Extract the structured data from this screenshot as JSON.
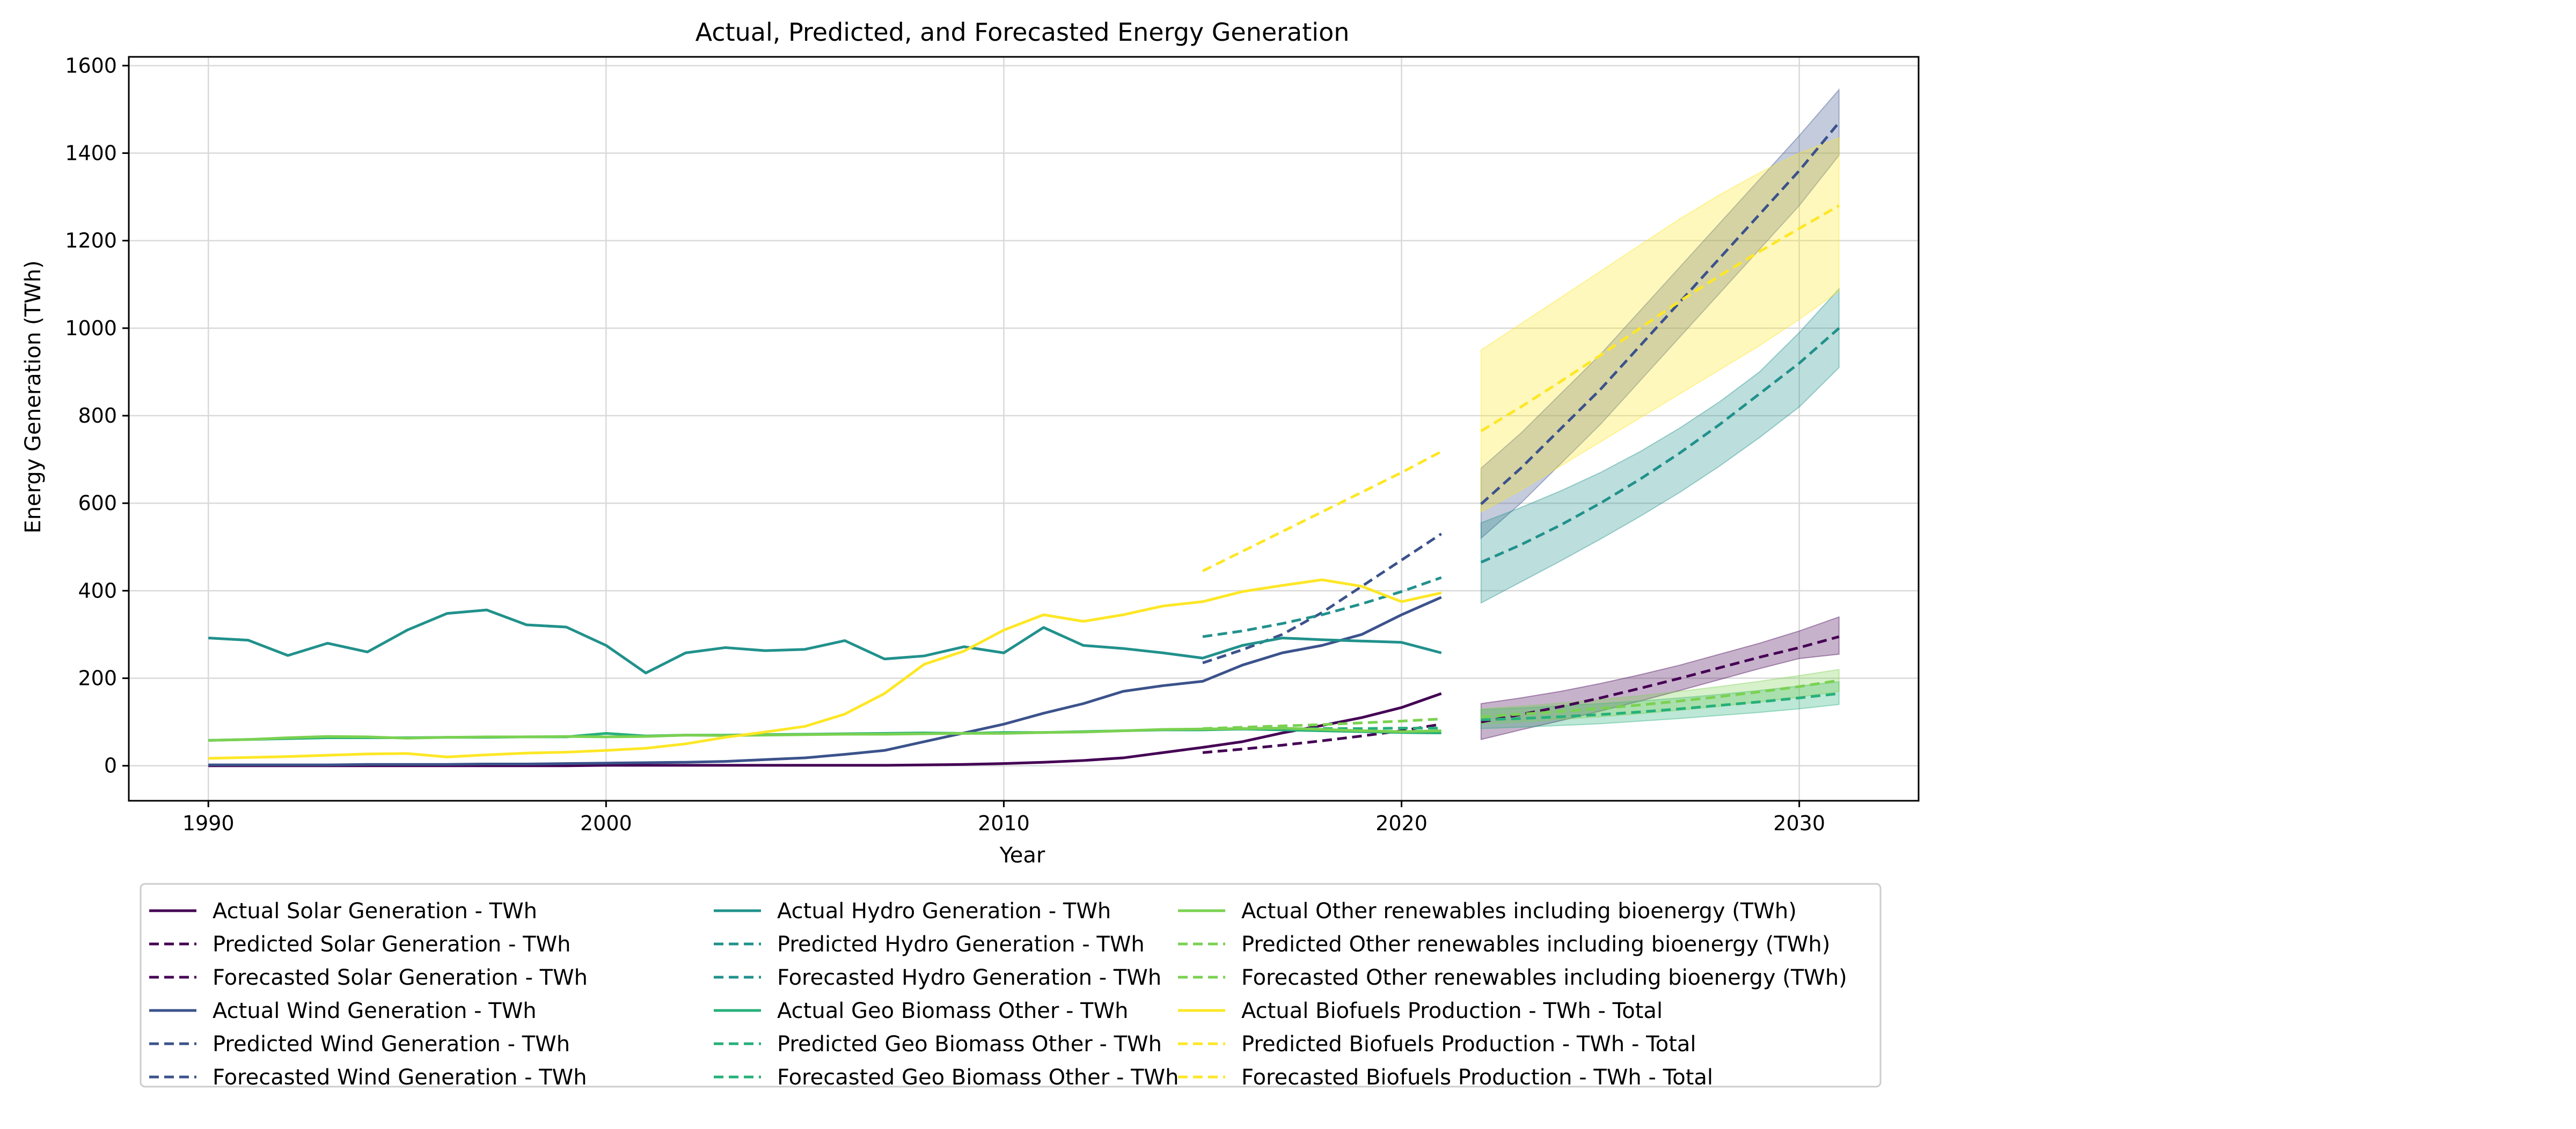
{
  "chart_data": {
    "type": "line",
    "title": "Actual, Predicted, and Forecasted Energy Generation",
    "xlabel": "Year",
    "ylabel": "Energy Generation (TWh)",
    "xlim": [
      1988,
      2033
    ],
    "ylim": [
      -80,
      1620
    ],
    "xticks": [
      1990,
      2000,
      2010,
      2020,
      2030
    ],
    "yticks": [
      0,
      200,
      400,
      600,
      800,
      1000,
      1200,
      1400,
      1600
    ],
    "grid": true,
    "legend_placement": "below",
    "colors": {
      "solar": "#440154",
      "wind": "#3b528b",
      "hydro": "#21918c",
      "geo": "#26b07a",
      "other": "#7ad151",
      "biofuels": "#fde725"
    },
    "series": [
      {
        "name": "Actual Solar Generation - TWh",
        "group": "solar",
        "style": "solid",
        "x": [
          1990,
          1991,
          1992,
          1993,
          1994,
          1995,
          1996,
          1997,
          1998,
          1999,
          2000,
          2001,
          2002,
          2003,
          2004,
          2005,
          2006,
          2007,
          2008,
          2009,
          2010,
          2011,
          2012,
          2013,
          2014,
          2015,
          2016,
          2017,
          2018,
          2019,
          2020,
          2021
        ],
        "values": [
          0,
          0,
          0,
          0,
          0,
          0,
          0,
          0,
          0,
          0,
          1,
          1,
          1,
          1,
          1,
          1,
          1,
          1,
          2,
          3,
          5,
          8,
          12,
          18,
          30,
          42,
          55,
          75,
          92,
          110,
          133,
          165
        ]
      },
      {
        "name": "Predicted Solar Generation - TWh",
        "group": "solar",
        "style": "dashed",
        "x": [
          2015,
          2016,
          2017,
          2018,
          2019,
          2020,
          2021
        ],
        "values": [
          30,
          38,
          47,
          57,
          68,
          80,
          95
        ]
      },
      {
        "name": "Forecasted Solar Generation - TWh",
        "group": "solar",
        "style": "dashed",
        "x": [
          2022,
          2023,
          2024,
          2025,
          2026,
          2027,
          2028,
          2029,
          2030,
          2031
        ],
        "values": [
          100,
          117,
          135,
          155,
          177,
          200,
          224,
          248,
          270,
          295
        ],
        "lower": [
          60,
          82,
          103,
          125,
          148,
          172,
          197,
          222,
          245,
          255
        ],
        "upper": [
          142,
          155,
          170,
          188,
          208,
          230,
          255,
          280,
          308,
          340
        ]
      },
      {
        "name": "Actual Wind Generation - TWh",
        "group": "wind",
        "style": "solid",
        "x": [
          1990,
          1991,
          1992,
          1993,
          1994,
          1995,
          1996,
          1997,
          1998,
          1999,
          2000,
          2001,
          2002,
          2003,
          2004,
          2005,
          2006,
          2007,
          2008,
          2009,
          2010,
          2011,
          2012,
          2013,
          2014,
          2015,
          2016,
          2017,
          2018,
          2019,
          2020,
          2021
        ],
        "values": [
          2,
          2,
          2,
          2,
          3,
          3,
          3,
          4,
          4,
          5,
          6,
          7,
          8,
          10,
          14,
          18,
          26,
          35,
          55,
          75,
          95,
          120,
          142,
          170,
          183,
          193,
          230,
          258,
          275,
          300,
          345,
          385
        ]
      },
      {
        "name": "Predicted Wind Generation - TWh",
        "group": "wind",
        "style": "dashed",
        "x": [
          2015,
          2016,
          2017,
          2018,
          2019,
          2020,
          2021
        ],
        "values": [
          235,
          265,
          300,
          350,
          410,
          470,
          530
        ]
      },
      {
        "name": "Forecasted Wind Generation - TWh",
        "group": "wind",
        "style": "dashed",
        "x": [
          2022,
          2023,
          2024,
          2025,
          2026,
          2027,
          2028,
          2029,
          2030,
          2031
        ],
        "values": [
          598,
          680,
          770,
          860,
          960,
          1060,
          1160,
          1260,
          1360,
          1470
        ],
        "lower": [
          520,
          600,
          690,
          780,
          880,
          980,
          1080,
          1180,
          1280,
          1395
        ],
        "upper": [
          680,
          760,
          850,
          940,
          1040,
          1140,
          1240,
          1340,
          1440,
          1545
        ]
      },
      {
        "name": "Actual Hydro Generation - TWh",
        "group": "hydro",
        "style": "solid",
        "x": [
          1990,
          1991,
          1992,
          1993,
          1994,
          1995,
          1996,
          1997,
          1998,
          1999,
          2000,
          2001,
          2002,
          2003,
          2004,
          2005,
          2006,
          2007,
          2008,
          2009,
          2010,
          2011,
          2012,
          2013,
          2014,
          2015,
          2016,
          2017,
          2018,
          2019,
          2020,
          2021
        ],
        "values": [
          292,
          287,
          252,
          280,
          260,
          310,
          348,
          356,
          322,
          317,
          275,
          212,
          258,
          270,
          263,
          266,
          286,
          244,
          251,
          272,
          258,
          316,
          275,
          268,
          258,
          246,
          275,
          292,
          288,
          285,
          282,
          258
        ]
      },
      {
        "name": "Predicted Hydro Generation - TWh",
        "group": "hydro",
        "style": "dashed",
        "x": [
          2015,
          2016,
          2017,
          2018,
          2019,
          2020,
          2021
        ],
        "values": [
          295,
          308,
          325,
          345,
          370,
          398,
          430
        ]
      },
      {
        "name": "Forecasted Hydro Generation - TWh",
        "group": "hydro",
        "style": "dashed",
        "x": [
          2022,
          2023,
          2024,
          2025,
          2026,
          2027,
          2028,
          2029,
          2030,
          2031
        ],
        "values": [
          465,
          505,
          550,
          600,
          655,
          715,
          780,
          850,
          920,
          1000
        ],
        "lower": [
          372,
          420,
          468,
          518,
          570,
          625,
          685,
          750,
          820,
          910
        ],
        "upper": [
          555,
          590,
          628,
          670,
          718,
          772,
          832,
          900,
          990,
          1090
        ]
      },
      {
        "name": "Actual Geo Biomass Other - TWh",
        "group": "geo",
        "style": "solid",
        "x": [
          1990,
          1991,
          1992,
          1993,
          1994,
          1995,
          1996,
          1997,
          1998,
          1999,
          2000,
          2001,
          2002,
          2003,
          2004,
          2005,
          2006,
          2007,
          2008,
          2009,
          2010,
          2011,
          2012,
          2013,
          2014,
          2015,
          2016,
          2017,
          2018,
          2019,
          2020,
          2021
        ],
        "values": [
          58,
          60,
          62,
          64,
          64,
          64,
          65,
          65,
          66,
          66,
          74,
          68,
          70,
          70,
          71,
          72,
          73,
          74,
          75,
          74,
          76,
          76,
          78,
          80,
          82,
          82,
          84,
          82,
          80,
          78,
          76,
          75
        ]
      },
      {
        "name": "Predicted Geo Biomass Other - TWh",
        "group": "geo",
        "style": "dashed",
        "x": [
          2015,
          2016,
          2017,
          2018,
          2019,
          2020,
          2021
        ],
        "values": [
          84,
          84,
          84,
          85,
          85,
          86,
          86
        ]
      },
      {
        "name": "Forecasted Geo Biomass Other - TWh",
        "group": "geo",
        "style": "dashed",
        "x": [
          2022,
          2023,
          2024,
          2025,
          2026,
          2027,
          2028,
          2029,
          2030,
          2031
        ],
        "values": [
          105,
          108,
          112,
          117,
          123,
          130,
          138,
          146,
          155,
          165
        ],
        "lower": [
          85,
          88,
          92,
          96,
          102,
          108,
          115,
          122,
          130,
          140
        ],
        "upper": [
          128,
          132,
          137,
          142,
          148,
          155,
          163,
          172,
          182,
          192
        ]
      },
      {
        "name": "Actual Other renewables including bioenergy (TWh)",
        "group": "other",
        "style": "solid",
        "x": [
          1990,
          1991,
          1992,
          1993,
          1994,
          1995,
          1996,
          1997,
          1998,
          1999,
          2000,
          2001,
          2002,
          2003,
          2004,
          2005,
          2006,
          2007,
          2008,
          2009,
          2010,
          2011,
          2012,
          2013,
          2014,
          2015,
          2016,
          2017,
          2018,
          2019,
          2020,
          2021
        ],
        "values": [
          58,
          60,
          64,
          67,
          66,
          63,
          65,
          66,
          66,
          67,
          66,
          67,
          70,
          69,
          70,
          71,
          72,
          72,
          73,
          74,
          74,
          76,
          77,
          80,
          83,
          84,
          85,
          86,
          83,
          80,
          78,
          80
        ]
      },
      {
        "name": "Predicted Other renewables including bioenergy (TWh)",
        "group": "other",
        "style": "dashed",
        "x": [
          2015,
          2016,
          2017,
          2018,
          2019,
          2020,
          2021
        ],
        "values": [
          85,
          88,
          91,
          94,
          98,
          102,
          107
        ]
      },
      {
        "name": "Forecasted Other renewables including bioenergy (TWh)",
        "group": "other",
        "style": "dashed",
        "x": [
          2022,
          2023,
          2024,
          2025,
          2026,
          2027,
          2028,
          2029,
          2030,
          2031
        ],
        "values": [
          112,
          118,
          124,
          131,
          139,
          148,
          158,
          169,
          181,
          195
        ],
        "lower": [
          95,
          100,
          106,
          112,
          119,
          127,
          136,
          146,
          157,
          170
        ],
        "upper": [
          130,
          136,
          143,
          151,
          160,
          170,
          181,
          193,
          206,
          220
        ]
      },
      {
        "name": "Actual Biofuels Production - TWh - Total",
        "group": "biofuels",
        "style": "solid",
        "x": [
          1990,
          1991,
          1992,
          1993,
          1994,
          1995,
          1996,
          1997,
          1998,
          1999,
          2000,
          2001,
          2002,
          2003,
          2004,
          2005,
          2006,
          2007,
          2008,
          2009,
          2010,
          2011,
          2012,
          2013,
          2014,
          2015,
          2016,
          2017,
          2018,
          2019,
          2020,
          2021
        ],
        "values": [
          17,
          19,
          21,
          24,
          27,
          28,
          20,
          25,
          29,
          31,
          35,
          40,
          50,
          65,
          77,
          90,
          118,
          165,
          232,
          262,
          310,
          345,
          330,
          345,
          365,
          375,
          398,
          412,
          425,
          410,
          375,
          395
        ]
      },
      {
        "name": "Predicted Biofuels Production - TWh - Total",
        "group": "biofuels",
        "style": "dashed",
        "x": [
          2015,
          2016,
          2017,
          2018,
          2019,
          2020,
          2021
        ],
        "values": [
          445,
          490,
          535,
          580,
          625,
          670,
          718
        ]
      },
      {
        "name": "Forecasted Biofuels Production - TWh - Total",
        "group": "biofuels",
        "style": "dashed",
        "x": [
          2022,
          2023,
          2024,
          2025,
          2026,
          2027,
          2028,
          2029,
          2030,
          2031
        ],
        "values": [
          765,
          820,
          878,
          938,
          1000,
          1062,
          1120,
          1175,
          1228,
          1280
        ],
        "lower": [
          580,
          630,
          685,
          740,
          795,
          850,
          905,
          960,
          1020,
          1085
        ],
        "upper": [
          950,
          1010,
          1070,
          1130,
          1190,
          1250,
          1305,
          1355,
          1400,
          1435
        ]
      }
    ]
  }
}
